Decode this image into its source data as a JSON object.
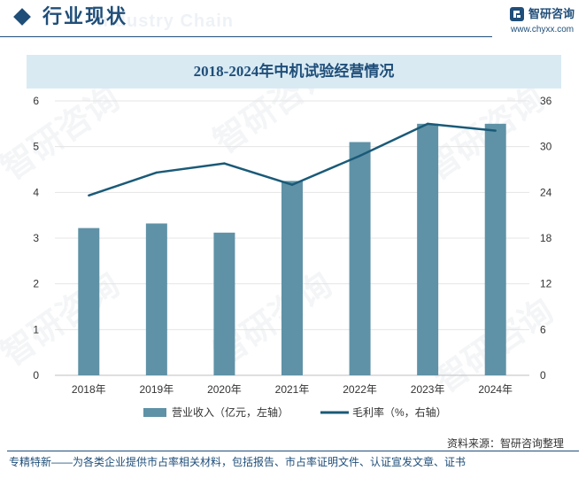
{
  "header": {
    "title": "行业现状",
    "ghost_text": "Industry Chain",
    "brand_name": "智研咨询",
    "brand_url": "www.chyxx.com"
  },
  "colors": {
    "bar": "#5f92a6",
    "line": "#1a5a78",
    "title_bg": "#d9eaf3",
    "brand": "#1f4e79"
  },
  "watermark": "智研咨询",
  "chart_data": {
    "type": "bar",
    "title": "2018-2024年中机试验经营情况",
    "categories": [
      "2018年",
      "2019年",
      "2020年",
      "2021年",
      "2022年",
      "2023年",
      "2024年"
    ],
    "series": [
      {
        "name": "营业收入（亿元，左轴）",
        "type": "bar",
        "axis": "left",
        "values": [
          3.22,
          3.32,
          3.12,
          4.25,
          5.1,
          5.5,
          5.5
        ]
      },
      {
        "name": "毛利率（%，右轴）",
        "type": "line",
        "axis": "right",
        "values": [
          23.6,
          26.6,
          27.8,
          25.0,
          28.8,
          33.0,
          32.1
        ]
      }
    ],
    "y_left": {
      "min": 0,
      "max": 6,
      "ticks": [
        0,
        1,
        2,
        3,
        4,
        5,
        6
      ]
    },
    "y_right": {
      "min": 0,
      "max": 36,
      "ticks": [
        0,
        6,
        12,
        18,
        24,
        30,
        36
      ]
    },
    "grid": true,
    "legend_position": "bottom"
  },
  "footer": {
    "source": "资料来源：智研咨询整理",
    "tagline": "专精特新——为各类企业提供市占率相关材料，包括报告、市占率证明文件、认证宣发文章、证书"
  }
}
